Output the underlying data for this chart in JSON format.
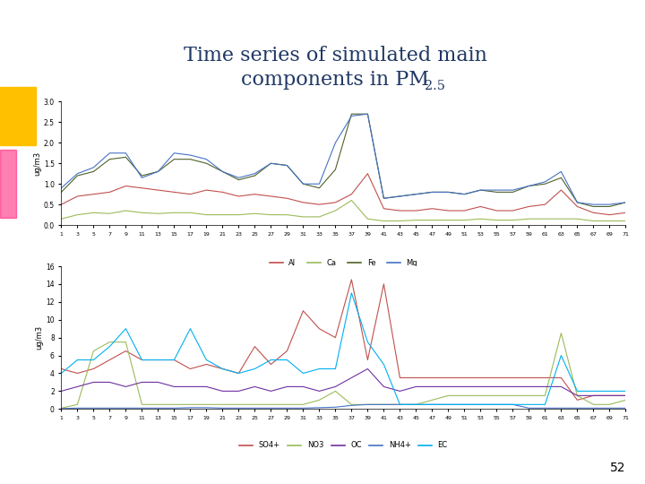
{
  "title_line1": "Time series of simulated main",
  "title_line2": "components in PM",
  "title_sub": "2.5",
  "x": [
    1,
    3,
    5,
    7,
    9,
    11,
    13,
    15,
    17,
    19,
    21,
    23,
    25,
    27,
    29,
    31,
    33,
    35,
    37,
    39,
    41,
    43,
    45,
    47,
    49,
    51,
    53,
    55,
    57,
    59,
    61,
    63,
    65,
    67,
    69,
    71
  ],
  "ylabel1": "ug/m3",
  "ylabel2": "ug/m3",
  "ylim1": [
    0,
    3
  ],
  "ylim2": [
    0,
    16
  ],
  "yticks1": [
    0,
    0.5,
    1.0,
    1.5,
    2.0,
    2.5,
    3.0
  ],
  "yticks2": [
    0,
    2,
    4,
    6,
    8,
    10,
    12,
    14,
    16
  ],
  "panel1": {
    "Al": [
      0.5,
      0.7,
      0.75,
      0.8,
      0.95,
      0.9,
      0.85,
      0.8,
      0.75,
      0.85,
      0.8,
      0.7,
      0.75,
      0.7,
      0.65,
      0.55,
      0.5,
      0.55,
      0.75,
      1.25,
      0.4,
      0.35,
      0.35,
      0.4,
      0.35,
      0.35,
      0.45,
      0.35,
      0.35,
      0.45,
      0.5,
      0.85,
      0.45,
      0.3,
      0.25,
      0.3
    ],
    "Ca": [
      0.15,
      0.25,
      0.3,
      0.28,
      0.35,
      0.3,
      0.28,
      0.3,
      0.3,
      0.25,
      0.25,
      0.25,
      0.28,
      0.25,
      0.25,
      0.2,
      0.2,
      0.35,
      0.6,
      0.15,
      0.1,
      0.1,
      0.12,
      0.12,
      0.12,
      0.12,
      0.15,
      0.12,
      0.12,
      0.15,
      0.15,
      0.15,
      0.15,
      0.1,
      0.1,
      0.1
    ],
    "Fe": [
      0.8,
      1.2,
      1.3,
      1.6,
      1.65,
      1.2,
      1.3,
      1.6,
      1.6,
      1.5,
      1.3,
      1.1,
      1.2,
      1.5,
      1.45,
      1.0,
      0.9,
      1.35,
      2.7,
      2.7,
      0.65,
      0.7,
      0.75,
      0.8,
      0.8,
      0.75,
      0.85,
      0.8,
      0.8,
      0.95,
      1.0,
      1.15,
      0.55,
      0.45,
      0.45,
      0.55
    ],
    "Mg": [
      0.9,
      1.25,
      1.4,
      1.75,
      1.75,
      1.15,
      1.3,
      1.75,
      1.7,
      1.6,
      1.3,
      1.15,
      1.25,
      1.5,
      1.45,
      1.0,
      1.0,
      2.0,
      2.65,
      2.7,
      0.65,
      0.7,
      0.75,
      0.8,
      0.8,
      0.75,
      0.85,
      0.85,
      0.85,
      0.95,
      1.05,
      1.3,
      0.55,
      0.5,
      0.5,
      0.55
    ]
  },
  "panel1_colors": {
    "Al": "#c0504d",
    "Ca": "#9bbb59",
    "Fe": "#4f6228",
    "Mg": "#4472c4"
  },
  "panel2": {
    "SO4+": [
      4.5,
      4.0,
      4.5,
      5.5,
      6.5,
      5.5,
      5.5,
      5.5,
      4.5,
      5.0,
      4.5,
      4.0,
      7.0,
      5.0,
      6.5,
      11.0,
      9.0,
      8.0,
      14.5,
      5.5,
      14.0,
      3.5,
      3.5,
      3.5,
      3.5,
      3.5,
      3.5,
      3.5,
      3.5,
      3.5,
      3.5,
      3.5,
      1.0,
      1.5,
      1.5,
      1.5
    ],
    "NO3": [
      0.1,
      0.5,
      6.5,
      7.5,
      7.5,
      0.5,
      0.5,
      0.5,
      0.5,
      0.5,
      0.5,
      0.5,
      0.5,
      0.5,
      0.5,
      0.5,
      1.0,
      2.0,
      0.5,
      0.5,
      0.5,
      0.5,
      0.5,
      1.0,
      1.5,
      1.5,
      1.5,
      1.5,
      1.5,
      1.5,
      1.5,
      8.5,
      1.5,
      0.5,
      0.5,
      1.0
    ],
    "OC": [
      2.0,
      2.5,
      3.0,
      3.0,
      2.5,
      3.0,
      3.0,
      2.5,
      2.5,
      2.5,
      2.0,
      2.0,
      2.5,
      2.0,
      2.5,
      2.5,
      2.0,
      2.5,
      3.5,
      4.5,
      2.5,
      2.0,
      2.5,
      2.5,
      2.5,
      2.5,
      2.5,
      2.5,
      2.5,
      2.5,
      2.5,
      2.5,
      1.5,
      1.5,
      1.5,
      1.5
    ],
    "NH4+": [
      0.05,
      0.1,
      0.1,
      0.1,
      0.1,
      0.1,
      0.1,
      0.1,
      0.15,
      0.15,
      0.1,
      0.1,
      0.1,
      0.1,
      0.1,
      0.1,
      0.15,
      0.2,
      0.4,
      0.5,
      0.5,
      0.5,
      0.5,
      0.5,
      0.5,
      0.5,
      0.5,
      0.5,
      0.5,
      0.1,
      0.1,
      0.1,
      0.1,
      0.1,
      0.1,
      0.1
    ],
    "EC": [
      4.0,
      5.5,
      5.5,
      7.0,
      9.0,
      5.5,
      5.5,
      5.5,
      9.0,
      5.5,
      4.5,
      4.0,
      4.5,
      5.5,
      5.5,
      4.0,
      4.5,
      4.5,
      13.0,
      7.5,
      5.0,
      0.5,
      0.5,
      0.5,
      0.5,
      0.5,
      0.5,
      0.5,
      0.5,
      0.5,
      0.5,
      6.0,
      2.0,
      2.0,
      2.0,
      2.0
    ]
  },
  "panel2_colors": {
    "SO4+": "#c0504d",
    "NO3": "#9bbb59",
    "OC": "#7030a0",
    "NH4+": "#4472c4",
    "EC": "#00b0f0"
  },
  "slide_bg": "#ffffff",
  "page_number": "52",
  "title_color": "#1f3864",
  "title_fontsize": 16,
  "deco_yellow": "#ffc000",
  "deco_pink": "#ff0066"
}
